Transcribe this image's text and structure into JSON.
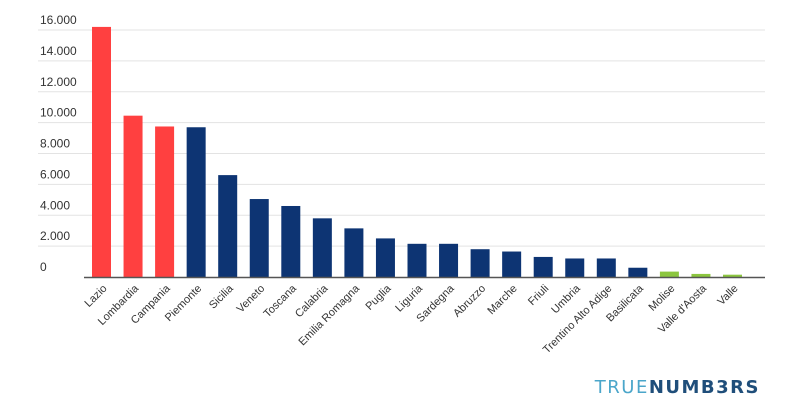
{
  "colors": {
    "red": "#ff4040",
    "navy": "#0d3473",
    "green": "#8cc63f",
    "grid": "#e3e3e3",
    "axis": "#555555",
    "brand_main": "#4ba6ca",
    "brand_accent": "#1f4e7a"
  },
  "brand": {
    "part1": "TRUE",
    "part2": "NUMB3RS"
  },
  "chart_data": {
    "type": "bar",
    "categories": [
      "Lazio",
      "Lombardia",
      "Campania",
      "Piemonte",
      "Sicilia",
      "Veneto",
      "Toscana",
      "Calabria",
      "Emilia Romagna",
      "Puglia",
      "Liguria",
      "Sardegna",
      "Abruzzo",
      "Marche",
      "Friuli",
      "Umbria",
      "Trentino Alto Adige",
      "Basilicata",
      "Molise",
      "Valle d'Aosta",
      "Valle"
    ],
    "values": [
      16200,
      10450,
      9750,
      9700,
      6600,
      5050,
      4600,
      3800,
      3150,
      2500,
      2150,
      2150,
      1800,
      1650,
      1300,
      1200,
      1200,
      600,
      350,
      200,
      150
    ],
    "bar_color_keys": [
      "red",
      "red",
      "red",
      "navy",
      "navy",
      "navy",
      "navy",
      "navy",
      "navy",
      "navy",
      "navy",
      "navy",
      "navy",
      "navy",
      "navy",
      "navy",
      "navy",
      "navy",
      "green",
      "green",
      "green"
    ],
    "ylim": [
      0,
      16000
    ],
    "yticks": [
      0,
      2000,
      4000,
      6000,
      8000,
      10000,
      12000,
      14000,
      16000
    ],
    "ytick_labels": [
      "0",
      "2.000",
      "4.000",
      "6.000",
      "8.000",
      "10.000",
      "12.000",
      "14.000",
      "16.000"
    ],
    "grid": true,
    "title": "",
    "xlabel": "",
    "ylabel": ""
  }
}
